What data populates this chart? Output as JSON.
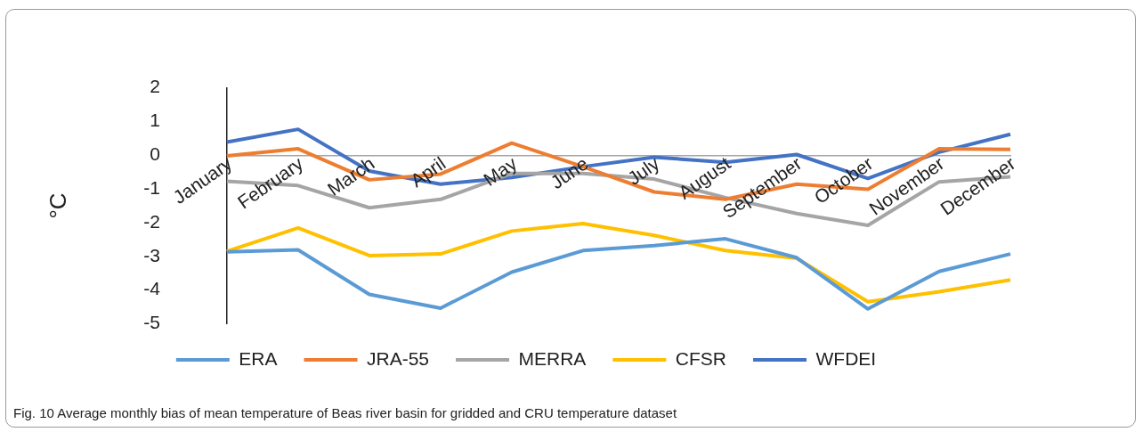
{
  "chart_data": {
    "type": "line",
    "ylabel": "°C",
    "categories": [
      "January",
      "February",
      "March",
      "April",
      "May",
      "June",
      "July",
      "August",
      "September",
      "October",
      "November",
      "December"
    ],
    "series": [
      {
        "name": "ERA",
        "color": "#5b9bd5",
        "values": [
          -2.87,
          -2.81,
          -4.13,
          -4.54,
          -3.47,
          -2.83,
          -2.68,
          -2.48,
          -3.04,
          -4.56,
          -3.45,
          -2.93
        ]
      },
      {
        "name": "JRA-55",
        "color": "#ed7d31",
        "values": [
          -0.02,
          0.19,
          -0.73,
          -0.56,
          0.36,
          -0.34,
          -1.09,
          -1.31,
          -0.86,
          -1.01,
          0.19,
          0.17
        ]
      },
      {
        "name": "MERRA",
        "color": "#a5a5a5",
        "values": [
          -0.77,
          -0.9,
          -1.56,
          -1.31,
          -0.54,
          -0.54,
          -0.71,
          -1.26,
          -1.73,
          -2.08,
          -0.79,
          -0.64
        ]
      },
      {
        "name": "CFSR",
        "color": "#ffc000",
        "values": [
          -2.85,
          -2.16,
          -2.98,
          -2.93,
          -2.25,
          -2.03,
          -2.38,
          -2.83,
          -3.06,
          -4.35,
          -4.05,
          -3.7
        ]
      },
      {
        "name": "WFDEI",
        "color": "#4472c4",
        "values": [
          0.39,
          0.77,
          -0.47,
          -0.86,
          -0.66,
          -0.34,
          -0.06,
          -0.21,
          0.02,
          -0.69,
          0.09,
          0.62
        ]
      }
    ],
    "ylim": [
      -5,
      2
    ],
    "yticks": [
      -5,
      -4,
      -3,
      -2,
      -1,
      0,
      1,
      2
    ],
    "grid": false,
    "legend": "bottom",
    "marker": "none",
    "line_style": "solid",
    "annotations": [
      "Fig. 10  Average monthly bias of mean temperature of Beas river basin for gridded and CRU temperature dataset"
    ]
  }
}
